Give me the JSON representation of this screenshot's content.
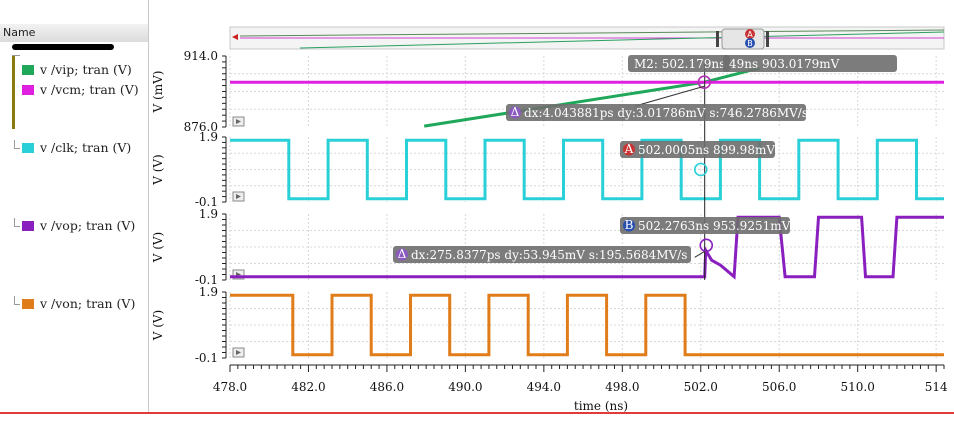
{
  "panel": {
    "header": "Name",
    "signals": [
      {
        "label": "v /vip; tran (V)",
        "color": "#1fa85a"
      },
      {
        "label": "v /vcm; tran (V)",
        "color": "#e020e0"
      },
      {
        "label": "v /clk; tran (V)",
        "color": "#2ad0d8"
      },
      {
        "label": "v /vop; tran (V)",
        "color": "#8a1fc0"
      },
      {
        "label": "v /von; tran (V)",
        "color": "#e07d1a"
      }
    ]
  },
  "chart_data": {
    "type": "line",
    "xlabel": "time (ns)",
    "x_ticks": [
      "478.0",
      "482.0",
      "486.0",
      "490.0",
      "494.0",
      "498.0",
      "502.0",
      "506.0",
      "510.0",
      "514"
    ],
    "xlim": [
      478.0,
      514.4
    ],
    "subplots": [
      {
        "ylabel": "V (mV)",
        "ytop": "914.0",
        "ybottom": "876.0",
        "ylim": [
          876.0,
          914.0
        ],
        "series": [
          {
            "name": "v /vip; tran (V)",
            "color": "#1fa85a",
            "x": [
              487.9,
              502.18,
              505.0
            ],
            "y": [
              876.5,
              900.0,
              907.5
            ]
          },
          {
            "name": "v /vcm; tran (V)",
            "color": "#e020e0",
            "x": [
              478.0,
              514.4
            ],
            "y": [
              900.0,
              900.0
            ]
          }
        ]
      },
      {
        "ylabel": "V (V)",
        "ytop": "1.9",
        "ybottom": "-0.1",
        "ylim": [
          -0.1,
          1.9
        ],
        "series": [
          {
            "name": "v /clk; tran (V)",
            "color": "#2ad0d8",
            "type": "square",
            "period": 4.0,
            "first_fall": 481.0,
            "first_rise": 483.0,
            "high": 1.8,
            "low": 0.0
          }
        ]
      },
      {
        "ylabel": "V (V)",
        "ytop": "1.9",
        "ybottom": "-0.1",
        "ylim": [
          -0.1,
          1.9
        ],
        "series": [
          {
            "name": "v /vop; tran (V)",
            "color": "#8a1fc0",
            "x": [
              478.0,
              502.2,
              502.25,
              502.55,
              503.0,
              503.7,
              503.9,
              506.0,
              506.3,
              507.8,
              508.0,
              510.2,
              510.4,
              511.8,
              512.0,
              514.4
            ],
            "y": [
              0.0,
              0.0,
              0.8,
              0.5,
              0.35,
              0.0,
              1.8,
              1.8,
              0.0,
              0.0,
              1.8,
              1.8,
              0.0,
              0.0,
              1.8,
              1.8
            ]
          }
        ]
      },
      {
        "ylabel": "V (V)",
        "ytop": "1.9",
        "ybottom": "-0.1",
        "ylim": [
          -0.1,
          1.9
        ],
        "series": [
          {
            "name": "v /von; tran (V)",
            "color": "#e07d1a",
            "type": "square",
            "period": 4.0,
            "first_fall": 481.2,
            "first_rise": 483.0,
            "high": 1.8,
            "low": 0.0,
            "end": 502.0
          }
        ]
      }
    ],
    "markers": [
      {
        "id": "M2",
        "text": "M2: 502.179ns 900.0mV",
        "subplot": 0,
        "x": 502.179,
        "y": 900.0
      },
      {
        "id": "A",
        "text": "502.0005ns 899.98mV",
        "subplot": 1,
        "x": 502.0005,
        "y": 0.9
      },
      {
        "id": "B",
        "text": "502.2763ns 953.9251mV",
        "subplot": 2,
        "x": 502.2763,
        "y": 0.95
      }
    ],
    "annotations": [
      {
        "text": "49ns 903.0179mV",
        "subplot": 0
      },
      {
        "text": "dx:4.043881ps dy:3.01786mV s:746.2786MV/s",
        "subplot": 0
      },
      {
        "text": "dx:275.8377ps dy:53.945mV s:195.5684MV/s",
        "subplot": 2
      }
    ]
  },
  "overview": {
    "badge_a": "A",
    "badge_b": "B"
  }
}
